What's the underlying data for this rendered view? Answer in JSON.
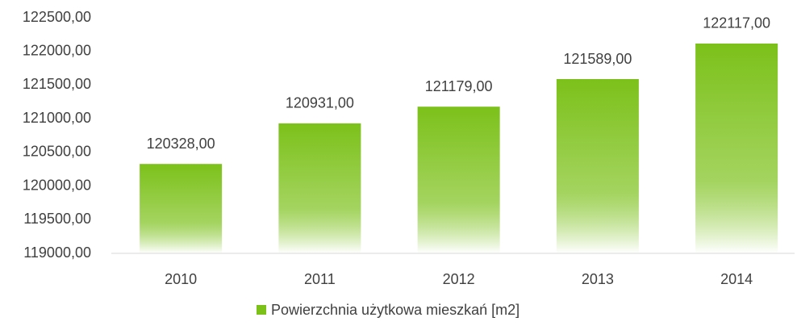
{
  "chart_data": {
    "type": "bar",
    "categories": [
      "2010",
      "2011",
      "2012",
      "2013",
      "2014"
    ],
    "series": [
      {
        "name": "Powierzchnia użytkowa mieszkań [m2]",
        "color": "#7cc11a",
        "values": [
          120328,
          120931,
          121179,
          121589,
          122117
        ],
        "value_labels": [
          "120328,00",
          "120931,00",
          "121179,00",
          "121589,00",
          "122117,00"
        ]
      }
    ],
    "ylim": [
      119000,
      122500
    ],
    "yticks": [
      {
        "value": 119000,
        "label": "119000,00"
      },
      {
        "value": 119500,
        "label": "119500,00"
      },
      {
        "value": 120000,
        "label": "120000,00"
      },
      {
        "value": 120500,
        "label": "120500,00"
      },
      {
        "value": 121000,
        "label": "121000,00"
      },
      {
        "value": 121500,
        "label": "121500,00"
      },
      {
        "value": 122000,
        "label": "122000,00"
      },
      {
        "value": 122500,
        "label": "122500,00"
      }
    ],
    "grid": false,
    "legend": "bottom"
  }
}
